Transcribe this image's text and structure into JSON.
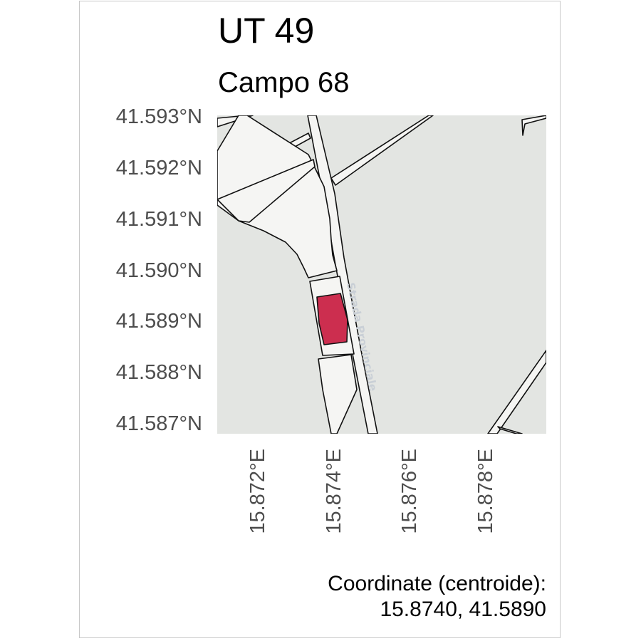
{
  "title": "UT 49",
  "subtitle": "Campo 68",
  "map": {
    "road_label": "Strada Provinciale",
    "colors": {
      "background": "#e3e5e2",
      "parcel_outline": "#111111",
      "highlight_fill": "#cc2e4f",
      "road_label": "#c9cfd6"
    }
  },
  "axes": {
    "y_ticks": [
      "41.593°N",
      "41.592°N",
      "41.591°N",
      "41.590°N",
      "41.589°N",
      "41.588°N",
      "41.587°N"
    ],
    "x_ticks": [
      "15.872°E",
      "15.874°E",
      "15.876°E",
      "15.878°E"
    ]
  },
  "caption": {
    "line1": "Coordinate (centroide):",
    "line2": "15.8740, 41.5890"
  }
}
